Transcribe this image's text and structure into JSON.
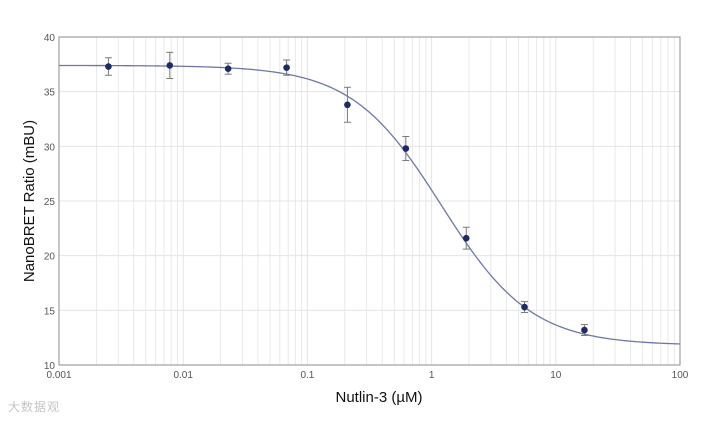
{
  "chart_data": {
    "type": "scatter",
    "title": "",
    "xlabel": "Nutlin-3 (µM)",
    "ylabel": "NanoBRET Ratio (mBU)",
    "xscale": "log",
    "xlim": [
      0.001,
      100
    ],
    "ylim": [
      10,
      40
    ],
    "xticks": [
      0.001,
      0.01,
      0.1,
      1,
      10,
      100
    ],
    "xtick_labels": [
      "0.001",
      "0.01",
      "0.1",
      "1",
      "10",
      "100"
    ],
    "yticks": [
      10,
      15,
      20,
      25,
      30,
      35,
      40
    ],
    "ytick_labels": [
      "10",
      "15",
      "20",
      "25",
      "30",
      "35",
      "40"
    ],
    "grid": true,
    "legend": "none",
    "points": [
      {
        "x": 0.0025,
        "y": 37.3,
        "err": 0.8
      },
      {
        "x": 0.0078,
        "y": 37.4,
        "err": 1.2
      },
      {
        "x": 0.023,
        "y": 37.1,
        "err": 0.5
      },
      {
        "x": 0.068,
        "y": 37.2,
        "err": 0.7
      },
      {
        "x": 0.21,
        "y": 33.8,
        "err": 1.6
      },
      {
        "x": 0.62,
        "y": 29.8,
        "err": 1.1
      },
      {
        "x": 1.9,
        "y": 21.6,
        "err": 1.0
      },
      {
        "x": 5.6,
        "y": 15.3,
        "err": 0.5
      },
      {
        "x": 17,
        "y": 13.2,
        "err": 0.5
      }
    ],
    "fit_curve": {
      "model": "4PL",
      "top": 37.4,
      "bottom": 11.8,
      "ic50": 1.2,
      "hill": 1.2
    },
    "colors": {
      "points": "#1a2a6c",
      "curve": "#6e78a8",
      "error": "#7a7a7a",
      "grid": "#e4e4e4",
      "border": "#8c8c8c"
    }
  },
  "watermark": "大数据观"
}
